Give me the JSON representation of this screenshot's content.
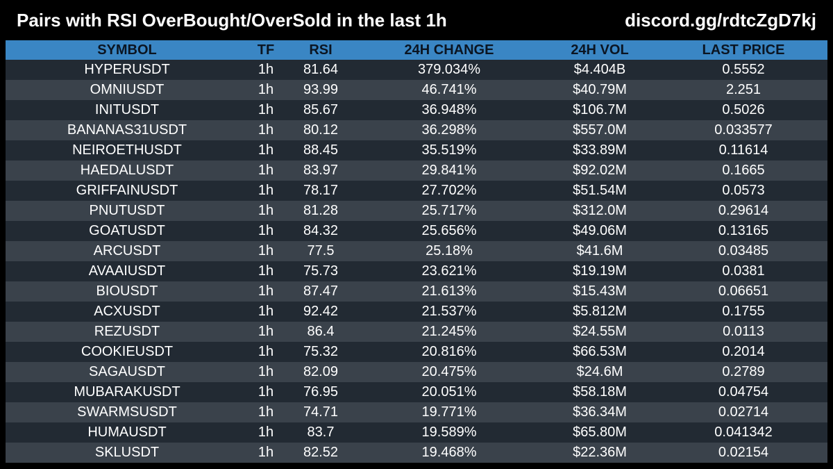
{
  "header": {
    "title": "Pairs with RSI OverBought/OverSold in the last 1h",
    "link": "discord.gg/rdtcZgD7kj"
  },
  "table": {
    "columns": [
      "SYMBOL",
      "TF",
      "RSI",
      "24H CHANGE",
      "24H VOL",
      "LAST PRICE"
    ],
    "rows": [
      [
        "HYPERUSDT",
        "1h",
        "81.64",
        "379.034%",
        "$4.404B",
        "0.5552"
      ],
      [
        "OMNIUSDT",
        "1h",
        "93.99",
        "46.741%",
        "$40.79M",
        "2.251"
      ],
      [
        "INITUSDT",
        "1h",
        "85.67",
        "36.948%",
        "$106.7M",
        "0.5026"
      ],
      [
        "BANANAS31USDT",
        "1h",
        "80.12",
        "36.298%",
        "$557.0M",
        "0.033577"
      ],
      [
        "NEIROETHUSDT",
        "1h",
        "88.45",
        "35.519%",
        "$33.89M",
        "0.11614"
      ],
      [
        "HAEDALUSDT",
        "1h",
        "83.97",
        "29.841%",
        "$92.02M",
        "0.1665"
      ],
      [
        "GRIFFAINUSDT",
        "1h",
        "78.17",
        "27.702%",
        "$51.54M",
        "0.0573"
      ],
      [
        "PNUTUSDT",
        "1h",
        "81.28",
        "25.717%",
        "$312.0M",
        "0.29614"
      ],
      [
        "GOATUSDT",
        "1h",
        "84.32",
        "25.656%",
        "$49.06M",
        "0.13165"
      ],
      [
        "ARCUSDT",
        "1h",
        "77.5",
        "25.18%",
        "$41.6M",
        "0.03485"
      ],
      [
        "AVAAIUSDT",
        "1h",
        "75.73",
        "23.621%",
        "$19.19M",
        "0.0381"
      ],
      [
        "BIOUSDT",
        "1h",
        "87.47",
        "21.613%",
        "$15.43M",
        "0.06651"
      ],
      [
        "ACXUSDT",
        "1h",
        "92.42",
        "21.537%",
        "$5.812M",
        "0.1755"
      ],
      [
        "REZUSDT",
        "1h",
        "86.4",
        "21.245%",
        "$24.55M",
        "0.0113"
      ],
      [
        "COOKIEUSDT",
        "1h",
        "75.32",
        "20.816%",
        "$66.53M",
        "0.2014"
      ],
      [
        "SAGAUSDT",
        "1h",
        "82.09",
        "20.475%",
        "$24.6M",
        "0.2789"
      ],
      [
        "MUBARAKUSDT",
        "1h",
        "76.95",
        "20.051%",
        "$58.18M",
        "0.04754"
      ],
      [
        "SWARMSUSDT",
        "1h",
        "74.71",
        "19.771%",
        "$36.34M",
        "0.02714"
      ],
      [
        "HUMAUSDT",
        "1h",
        "83.7",
        "19.589%",
        "$65.80M",
        "0.041342"
      ],
      [
        "SKLUSDT",
        "1h",
        "82.52",
        "19.468%",
        "$22.36M",
        "0.02154"
      ]
    ]
  },
  "colors": {
    "background": "#000000",
    "header_row": "#3a86c4",
    "row_dark": "#222a33",
    "row_light": "#3a424b",
    "text": "#ffffff"
  }
}
